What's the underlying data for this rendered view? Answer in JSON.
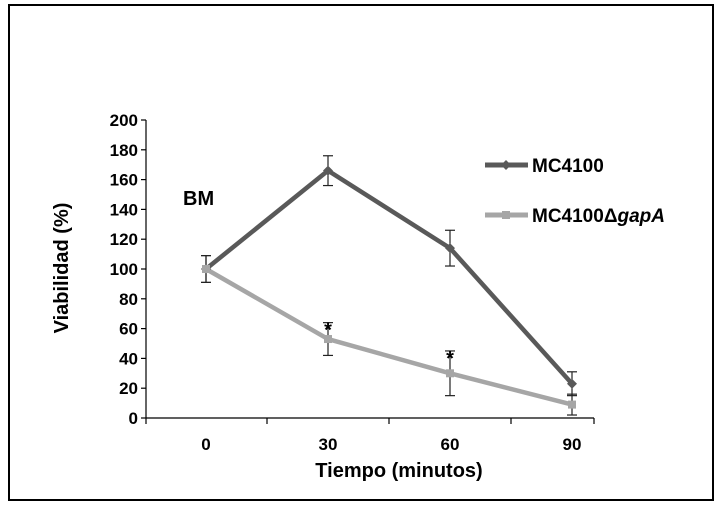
{
  "chart_data": {
    "type": "line",
    "x": [
      0,
      30,
      60,
      90
    ],
    "xlabel": "Tiempo (minutos)",
    "ylabel": "Viabilidad (%)",
    "ylim": [
      0,
      200
    ],
    "yticks": [
      0,
      20,
      40,
      60,
      80,
      100,
      120,
      140,
      160,
      180,
      200
    ],
    "xtick_labels": [
      "0",
      "30",
      "60",
      "90"
    ],
    "grid": false,
    "legend_position": "top-right",
    "series": [
      {
        "name": "MC4100",
        "values": [
          100,
          166,
          114,
          23
        ],
        "errors": [
          9,
          10,
          12,
          8
        ],
        "color": "#595959",
        "marker": "diamond"
      },
      {
        "name_prefix": "MC4100Δ",
        "name_italic": "gapA",
        "values": [
          100,
          53,
          30,
          9
        ],
        "errors": [
          9,
          11,
          15,
          7
        ],
        "color": "#a6a6a6",
        "marker": "square"
      }
    ],
    "annotations": [
      {
        "text": "BM"
      },
      {
        "text": "*",
        "x": 30,
        "y": 64
      },
      {
        "text": "*",
        "x": 60,
        "y": 45
      }
    ]
  }
}
